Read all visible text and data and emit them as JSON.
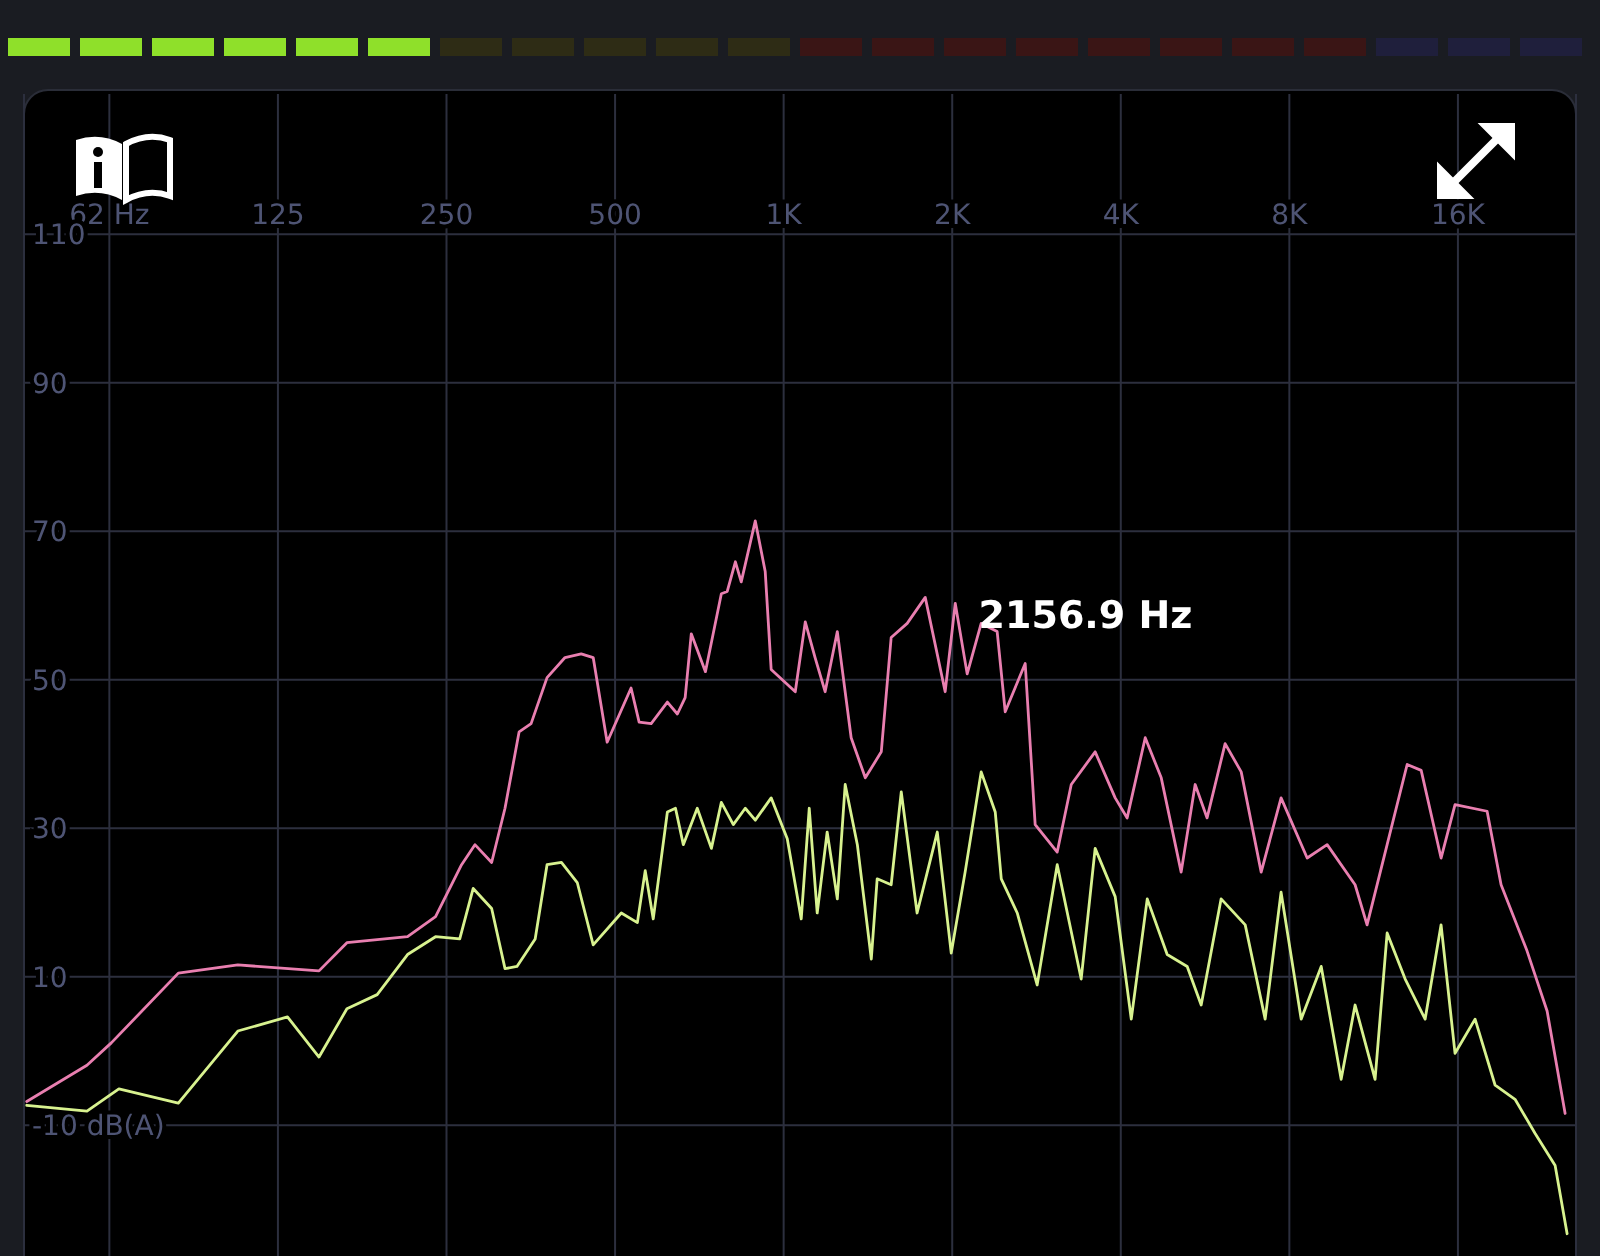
{
  "chart_data": {
    "type": "line",
    "log": "x",
    "grid": true,
    "xlim": [
      44,
      26000
    ],
    "ylim": [
      -27.6,
      128.9
    ],
    "xticks": [
      {
        "value": 62.5,
        "label": "62 Hz"
      },
      125,
      250,
      500,
      {
        "value": 1000,
        "label": "1K"
      },
      {
        "value": 2000,
        "label": "2K"
      },
      {
        "value": 4000,
        "label": "4K"
      },
      {
        "value": 8000,
        "label": "8K"
      },
      {
        "value": 16000,
        "label": "16K"
      }
    ],
    "yticks": [
      {
        "value": -10,
        "label": "-10 dB(A)"
      },
      10,
      30,
      50,
      70,
      90,
      110
    ],
    "annotations": [
      {
        "text": "2156.9 Hz",
        "x": 2156.9,
        "y": 57
      }
    ],
    "series": [
      {
        "color": "#e97fb0",
        "x": [
          44.5,
          57,
          63,
          83,
          106,
          148,
          166,
          213,
          239,
          266,
          281,
          301,
          318,
          337,
          354,
          378,
          407,
          435,
          457,
          484,
          534,
          552,
          580,
          620,
          646,
          667,
          684,
          725,
          774,
          793,
          820,
          840,
          890,
          927,
          950,
          1049,
          1093,
          1138,
          1186,
          1247,
          1320,
          1399,
          1494,
          1556,
          1662,
          1790,
          1943,
          2025,
          2127,
          2253,
          2406,
          2487,
          2700,
          2813,
          3080,
          3263,
          3600,
          3909,
          4106,
          4423,
          4724,
          5127,
          5431,
          5704,
          6143,
          6563,
          7125,
          7732,
          8608,
          9345,
          10483,
          11012,
          11959,
          12985,
          13756,
          14929,
          15811,
          18039,
          19107,
          21257,
          23087,
          24863
        ],
        "values": [
          -6.8,
          -1.9,
          1.1,
          10.5,
          11.6,
          10.8,
          14.6,
          15.4,
          18.1,
          25.1,
          27.8,
          25.4,
          32.7,
          43.0,
          44.1,
          50.3,
          53.0,
          53.5,
          53.0,
          41.6,
          48.9,
          44.3,
          44.1,
          47.0,
          45.4,
          47.6,
          56.2,
          51.1,
          61.6,
          61.9,
          65.9,
          63.2,
          71.4,
          64.6,
          51.4,
          48.4,
          57.8,
          53.0,
          48.4,
          56.5,
          42.2,
          36.8,
          40.3,
          55.7,
          57.6,
          61.1,
          48.4,
          60.3,
          50.8,
          57.6,
          56.5,
          45.7,
          52.2,
          30.5,
          26.8,
          35.9,
          40.3,
          34.1,
          31.4,
          42.2,
          36.8,
          24.1,
          35.9,
          31.4,
          41.4,
          37.6,
          24.1,
          34.1,
          26.0,
          27.8,
          22.4,
          17.0,
          27.8,
          38.6,
          37.8,
          26.0,
          33.2,
          32.3,
          22.4,
          13.5,
          5.4,
          -8.4
        ]
      },
      {
        "color": "#d8f28f",
        "x": [
          44.5,
          57,
          65,
          83,
          106,
          130,
          148,
          166,
          188,
          213,
          239,
          264,
          279,
          301,
          318,
          334,
          360,
          378,
          401,
          428,
          457,
          513,
          548,
          566,
          585,
          620,
          641,
          662,
          701,
          743,
          774,
          813,
          854,
          890,
          950,
          1015,
          1075,
          1111,
          1148,
          1196,
          1247,
          1288,
          1354,
          1434,
          1469,
          1556,
          1622,
          1731,
          1881,
          1992,
          2109,
          2253,
          2387,
          2447,
          2613,
          2836,
          3080,
          3399,
          3600,
          3909,
          4176,
          4460,
          4841,
          5256,
          5567,
          6043,
          6672,
          7242,
          7732,
          8398,
          9120,
          9899,
          10483,
          11381,
          11959,
          12880,
          13981,
          14929,
          15811,
          17169,
          18645,
          20235,
          21978,
          23862,
          25068
        ],
        "values": [
          -7.3,
          -8.1,
          -5.1,
          -7.0,
          2.7,
          4.6,
          -0.8,
          5.7,
          7.6,
          13.0,
          15.4,
          15.1,
          21.9,
          19.2,
          11.1,
          11.4,
          15.1,
          25.1,
          25.4,
          22.7,
          14.3,
          18.6,
          17.3,
          24.3,
          17.8,
          32.2,
          32.7,
          27.8,
          32.7,
          27.3,
          33.5,
          30.5,
          32.7,
          31.1,
          34.1,
          28.6,
          17.8,
          32.7,
          18.6,
          29.5,
          20.5,
          35.9,
          27.8,
          12.4,
          23.2,
          22.4,
          34.9,
          18.6,
          29.5,
          13.2,
          24.1,
          37.6,
          32.2,
          23.2,
          18.6,
          8.9,
          25.1,
          9.7,
          27.3,
          20.8,
          4.3,
          20.5,
          13.0,
          11.4,
          6.2,
          20.5,
          17.0,
          4.3,
          21.4,
          4.3,
          11.4,
          -3.8,
          6.2,
          -3.8,
          15.9,
          9.7,
          4.3,
          17.0,
          -0.3,
          4.3,
          -4.6,
          -6.5,
          -11.1,
          -15.4,
          -24.6
        ]
      }
    ]
  }
}
